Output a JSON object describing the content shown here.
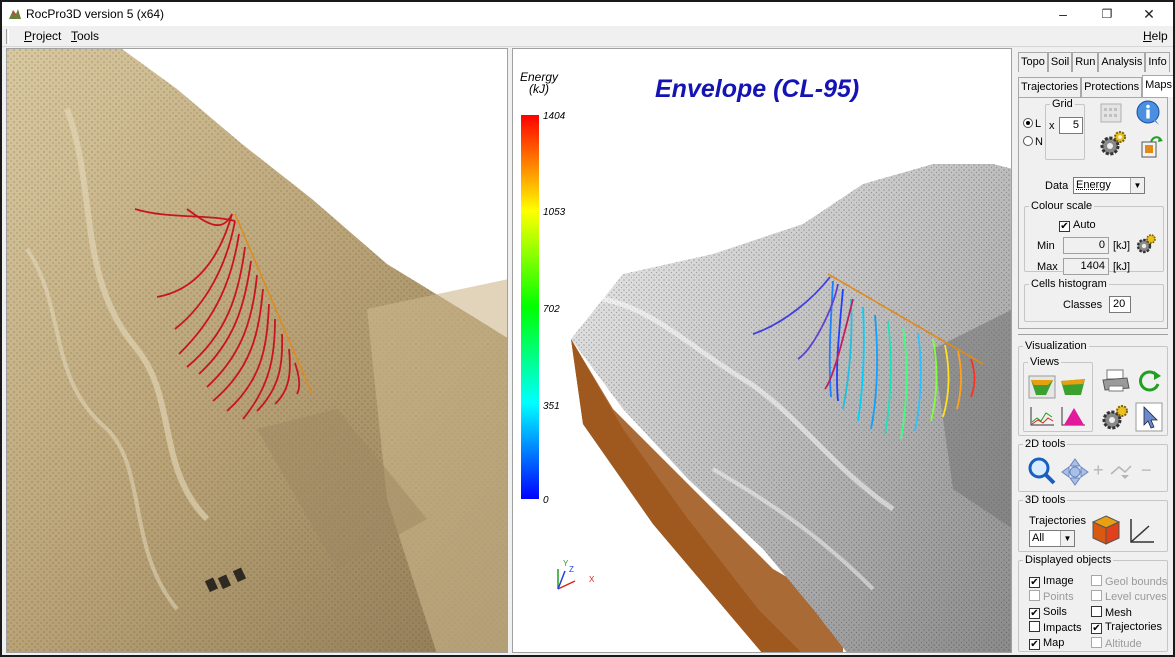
{
  "window": {
    "title": "RocPro3D version 5 (x64)",
    "controls": {
      "minimize": "–",
      "restore": "❐",
      "close": "✕"
    }
  },
  "menu": {
    "project": "Project",
    "tools": "Tools",
    "help": "Help"
  },
  "viewer": {
    "title": "Envelope (CL-95)",
    "legend_title_line1": "Energy",
    "legend_title_line2": "(kJ)",
    "legend_ticks": [
      "1404",
      "1053",
      "702",
      "351",
      "0"
    ],
    "axes": {
      "x": "X",
      "y": "Y",
      "z": "Z"
    }
  },
  "panel": {
    "tabs_row1": [
      "Topo",
      "Soil",
      "Run",
      "Analysis",
      "Info"
    ],
    "tabs_row2": [
      "Trajectories",
      "Protections",
      "Maps"
    ],
    "grid": {
      "legend": "Grid",
      "option_l": "L",
      "option_n": "N",
      "x_label": "x",
      "value": "5"
    },
    "data": {
      "label": "Data",
      "value": "Energy"
    },
    "colour_scale": {
      "legend": "Colour scale",
      "auto_label": "Auto",
      "min_label": "Min",
      "min_value": "0",
      "max_label": "Max",
      "max_value": "1404",
      "unit": "[kJ]"
    },
    "histogram": {
      "legend": "Cells histogram",
      "classes_label": "Classes",
      "classes_value": "20"
    },
    "visualization": {
      "legend": "Visualization",
      "views_legend": "Views"
    },
    "tools2d": {
      "legend": "2D tools"
    },
    "tools3d": {
      "legend": "3D tools",
      "trajectories_label": "Trajectories",
      "trajectories_value": "All"
    },
    "displayed": {
      "legend": "Displayed objects",
      "items": [
        {
          "label": "Image",
          "checked": "✔"
        },
        {
          "label": "Geol bounds",
          "checked": ""
        },
        {
          "label": "Points",
          "checked": ""
        },
        {
          "label": "Level curves",
          "checked": ""
        },
        {
          "label": "Soils",
          "checked": "✔"
        },
        {
          "label": "Mesh",
          "checked": ""
        },
        {
          "label": "Impacts",
          "checked": ""
        },
        {
          "label": "Trajectories",
          "checked": "✔"
        },
        {
          "label": "Map",
          "checked": "✔"
        },
        {
          "label": "Altitude",
          "checked": ""
        }
      ]
    }
  },
  "colors": {
    "title_blue": "#1414b4",
    "terrain_tan": "#c9b48a",
    "trajectory_red": "#c8141e"
  }
}
